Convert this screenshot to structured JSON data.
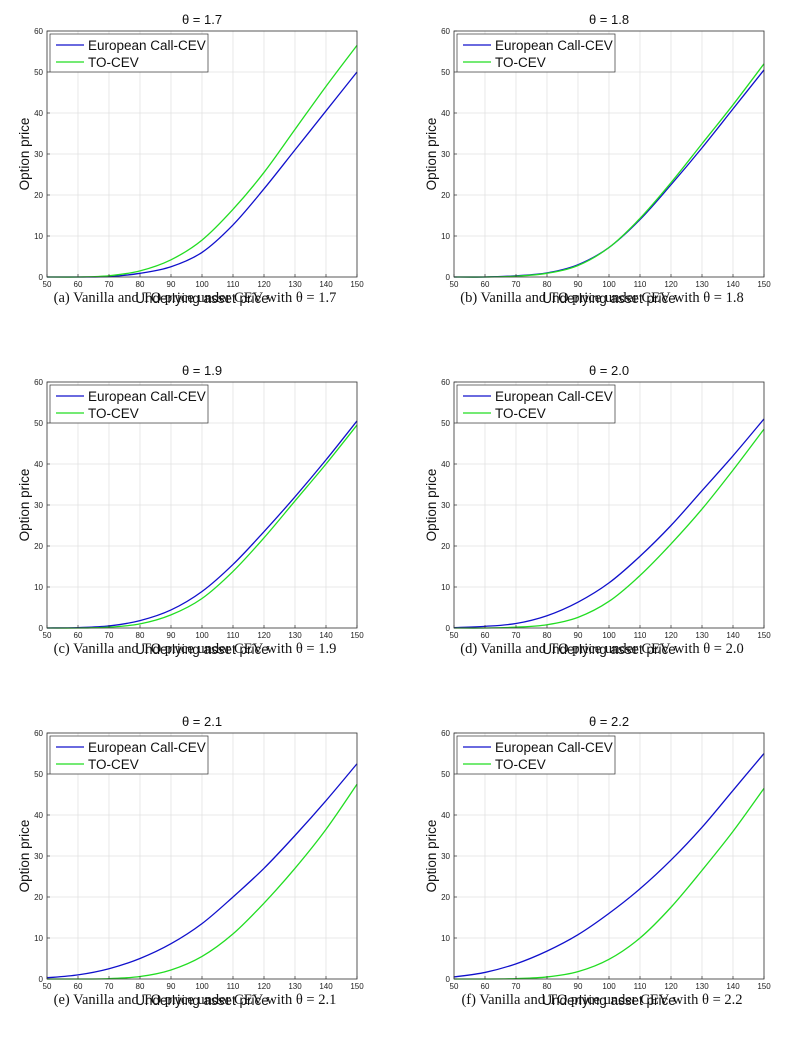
{
  "colors": {
    "series_1": "#1010cc",
    "series_2": "#22dd22",
    "grid": "#e2e2e2",
    "axis": "#333333"
  },
  "chart_data": [
    {
      "type": "line",
      "title": "θ = 1.7",
      "xlabel": "Underlying asset price",
      "ylabel": "Option price",
      "xlim": [
        50,
        150
      ],
      "ylim": [
        0,
        60
      ],
      "xticks": [
        50,
        60,
        70,
        80,
        90,
        100,
        110,
        120,
        130,
        140,
        150
      ],
      "yticks": [
        0,
        10,
        20,
        30,
        40,
        50,
        60
      ],
      "grid": true,
      "legend": "top-left",
      "x": [
        50,
        60,
        70,
        80,
        90,
        100,
        110,
        120,
        130,
        140,
        150
      ],
      "series": [
        {
          "name": "European Call-CEV",
          "values": [
            0,
            0,
            0.1,
            0.9,
            2.5,
            6,
            12.7,
            21.5,
            31,
            40.5,
            50
          ]
        },
        {
          "name": "TO-CEV",
          "values": [
            0,
            0,
            0.3,
            1.5,
            4.2,
            9,
            16.5,
            25.5,
            36,
            46.5,
            56.5
          ]
        }
      ],
      "caption": "(a)  Vanilla and TO price under CEV with θ = 1.7"
    },
    {
      "type": "line",
      "title": "θ = 1.8",
      "xlabel": "Underlying asset price",
      "ylabel": "Option price",
      "xlim": [
        50,
        150
      ],
      "ylim": [
        0,
        60
      ],
      "xticks": [
        50,
        60,
        70,
        80,
        90,
        100,
        110,
        120,
        130,
        140,
        150
      ],
      "yticks": [
        0,
        10,
        20,
        30,
        40,
        50,
        60
      ],
      "grid": true,
      "legend": "top-left",
      "x": [
        50,
        60,
        70,
        80,
        90,
        100,
        110,
        120,
        130,
        140,
        150
      ],
      "series": [
        {
          "name": "European Call-CEV",
          "values": [
            0,
            0,
            0.3,
            1,
            3,
            7.2,
            14,
            22.5,
            31.5,
            41,
            50.5
          ]
        },
        {
          "name": "TO-CEV",
          "values": [
            0,
            0,
            0.2,
            0.9,
            2.8,
            7.2,
            14.3,
            23,
            32.5,
            42,
            52
          ]
        }
      ],
      "caption": "(b)  Vanilla and TO price under CEV with θ = 1.8"
    },
    {
      "type": "line",
      "title": "θ = 1.9",
      "xlabel": "Underlying asset price",
      "ylabel": "Option price",
      "xlim": [
        50,
        150
      ],
      "ylim": [
        0,
        60
      ],
      "xticks": [
        50,
        60,
        70,
        80,
        90,
        100,
        110,
        120,
        130,
        140,
        150
      ],
      "yticks": [
        0,
        10,
        20,
        30,
        40,
        50,
        60
      ],
      "grid": true,
      "legend": "top-left",
      "x": [
        50,
        60,
        70,
        80,
        90,
        100,
        110,
        120,
        130,
        140,
        150
      ],
      "series": [
        {
          "name": "European Call-CEV",
          "values": [
            0,
            0.1,
            0.5,
            1.8,
            4.4,
            8.9,
            15.5,
            23.5,
            32,
            41,
            50.5
          ]
        },
        {
          "name": "TO-CEV",
          "values": [
            0,
            0,
            0.2,
            1,
            3.2,
            7.2,
            13.8,
            22,
            31,
            40,
            49.5
          ]
        }
      ],
      "caption": "(c)  Vanilla and TO price under CEV with θ = 1.9"
    },
    {
      "type": "line",
      "title": "θ = 2.0",
      "xlabel": "Underlying asset price",
      "ylabel": "Option price",
      "xlim": [
        50,
        150
      ],
      "ylim": [
        0,
        60
      ],
      "xticks": [
        50,
        60,
        70,
        80,
        90,
        100,
        110,
        120,
        130,
        140,
        150
      ],
      "yticks": [
        0,
        10,
        20,
        30,
        40,
        50,
        60
      ],
      "grid": true,
      "legend": "top-left",
      "x": [
        50,
        60,
        70,
        80,
        90,
        100,
        110,
        120,
        130,
        140,
        150
      ],
      "series": [
        {
          "name": "European Call-CEV",
          "values": [
            0.1,
            0.4,
            1.1,
            3,
            6.3,
            11,
            17.5,
            25,
            33.5,
            42,
            51
          ]
        },
        {
          "name": "TO-CEV",
          "values": [
            0,
            0,
            0.2,
            0.8,
            2.6,
            6.5,
            12.8,
            20.5,
            29,
            38.5,
            48.5
          ]
        }
      ],
      "caption": "(d)  Vanilla and TO price under CEV with θ = 2.0"
    },
    {
      "type": "line",
      "title": "θ = 2.1",
      "xlabel": "Underlying asset price",
      "ylabel": "Option price",
      "xlim": [
        50,
        150
      ],
      "ylim": [
        0,
        60
      ],
      "xticks": [
        50,
        60,
        70,
        80,
        90,
        100,
        110,
        120,
        130,
        140,
        150
      ],
      "yticks": [
        0,
        10,
        20,
        30,
        40,
        50,
        60
      ],
      "grid": true,
      "legend": "top-left",
      "x": [
        50,
        60,
        70,
        80,
        90,
        100,
        110,
        120,
        130,
        140,
        150
      ],
      "series": [
        {
          "name": "European Call-CEV",
          "values": [
            0.3,
            1,
            2.5,
            5,
            8.6,
            13.5,
            20,
            27,
            35,
            43.5,
            52.5
          ]
        },
        {
          "name": "TO-CEV",
          "values": [
            0,
            0,
            0.1,
            0.6,
            2.2,
            5.5,
            11,
            18.5,
            27,
            36.5,
            47.5
          ]
        }
      ],
      "caption": "(e)  Vanilla and TO price under CEV with θ = 2.1"
    },
    {
      "type": "line",
      "title": "θ = 2.2",
      "xlabel": "Underlying asset price",
      "ylabel": "Option price",
      "xlim": [
        50,
        150
      ],
      "ylim": [
        0,
        60
      ],
      "xticks": [
        50,
        60,
        70,
        80,
        90,
        100,
        110,
        120,
        130,
        140,
        150
      ],
      "yticks": [
        0,
        10,
        20,
        30,
        40,
        50,
        60
      ],
      "grid": true,
      "legend": "top-left",
      "x": [
        50,
        60,
        70,
        80,
        90,
        100,
        110,
        120,
        130,
        140,
        150
      ],
      "series": [
        {
          "name": "European Call-CEV",
          "values": [
            0.5,
            1.6,
            3.7,
            6.8,
            10.8,
            16,
            22,
            29,
            37,
            46,
            55
          ]
        },
        {
          "name": "TO-CEV",
          "values": [
            0,
            0,
            0.1,
            0.5,
            1.8,
            4.8,
            10,
            17.5,
            26.5,
            36,
            46.5
          ]
        }
      ],
      "caption": "(f)  Vanilla and TO price under CEV with θ = 2.2"
    }
  ]
}
